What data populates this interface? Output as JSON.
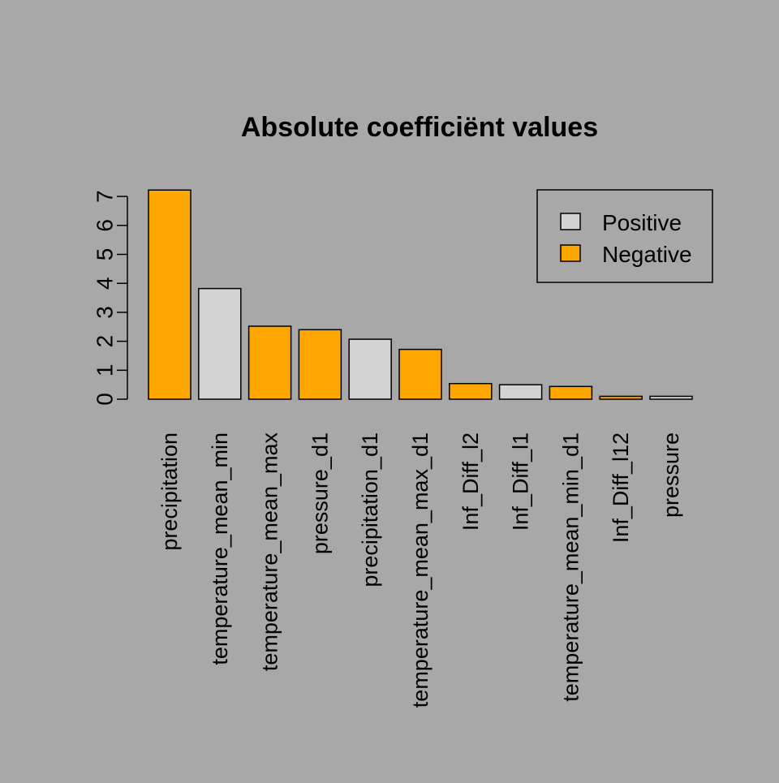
{
  "chart_data": {
    "type": "bar",
    "title": "Absolute coefficiënt values",
    "xlabel": "",
    "ylabel": "",
    "ylim": [
      0,
      7.25
    ],
    "yticks": [
      0,
      1,
      2,
      3,
      4,
      5,
      6,
      7
    ],
    "categories": [
      "precipitation",
      "temperature_mean_min",
      "temperature_mean_max",
      "pressure_d1",
      "precipitation_d1",
      "temperature_mean_max_d1",
      "Inf_Diff_l2",
      "Inf_Diff_l1",
      "temperature_mean_min_d1",
      "Inf_Diff_l12",
      "pressure"
    ],
    "values": [
      7.22,
      3.82,
      2.52,
      2.4,
      2.07,
      1.72,
      0.54,
      0.5,
      0.44,
      0.1,
      0.1
    ],
    "signs": [
      "Negative",
      "Positive",
      "Negative",
      "Negative",
      "Positive",
      "Negative",
      "Negative",
      "Positive",
      "Negative",
      "Negative",
      "Positive"
    ],
    "legend": {
      "position": "top-right",
      "entries": [
        {
          "label": "Positive",
          "color": "#d3d3d3"
        },
        {
          "label": "Negative",
          "color": "#ffa500"
        }
      ]
    },
    "colors": {
      "Positive": "#d3d3d3",
      "Negative": "#ffa500",
      "background": "#a8a8a8"
    },
    "grid": false
  }
}
